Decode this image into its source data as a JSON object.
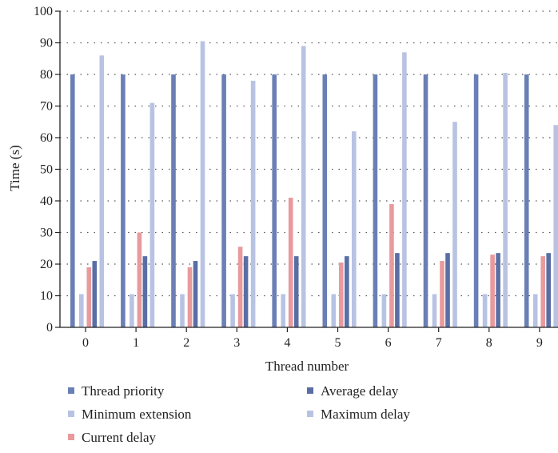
{
  "chart_data": {
    "type": "bar",
    "categories": [
      "0",
      "1",
      "2",
      "3",
      "4",
      "5",
      "6",
      "7",
      "8",
      "9"
    ],
    "series": [
      {
        "name": "Thread priority",
        "color": "#6a7fb5",
        "values": [
          80,
          80,
          80,
          80,
          80,
          80,
          80,
          80,
          80,
          80
        ]
      },
      {
        "name": "Minimum extension",
        "color": "#b8c3e3",
        "values": [
          10.5,
          10.5,
          10.5,
          10.5,
          10.5,
          10.5,
          10.5,
          10.5,
          10.5,
          10.5
        ]
      },
      {
        "name": "Current delay",
        "color": "#e89a9c",
        "values": [
          19,
          30,
          19,
          25.5,
          41,
          20.5,
          39,
          21,
          23,
          22.5
        ]
      },
      {
        "name": "Average delay",
        "color": "#5a6ea6",
        "values": [
          21,
          22.5,
          21,
          22.5,
          22.5,
          22.5,
          23.5,
          23.5,
          23.5,
          23.5
        ]
      },
      {
        "name": "Maximum delay",
        "color": "#b8c3e3",
        "values": [
          86,
          71,
          90.5,
          78,
          89,
          62,
          87,
          65,
          80.5,
          64
        ]
      }
    ],
    "xlabel": "Thread number",
    "ylabel": "Time (s)",
    "ylim": [
      0,
      100
    ],
    "yticks": [
      "0",
      "10",
      "20",
      "30",
      "40",
      "50",
      "60",
      "70",
      "80",
      "90",
      "100"
    ],
    "grid": "horizontal dotted",
    "legend_placement": "bottom"
  }
}
